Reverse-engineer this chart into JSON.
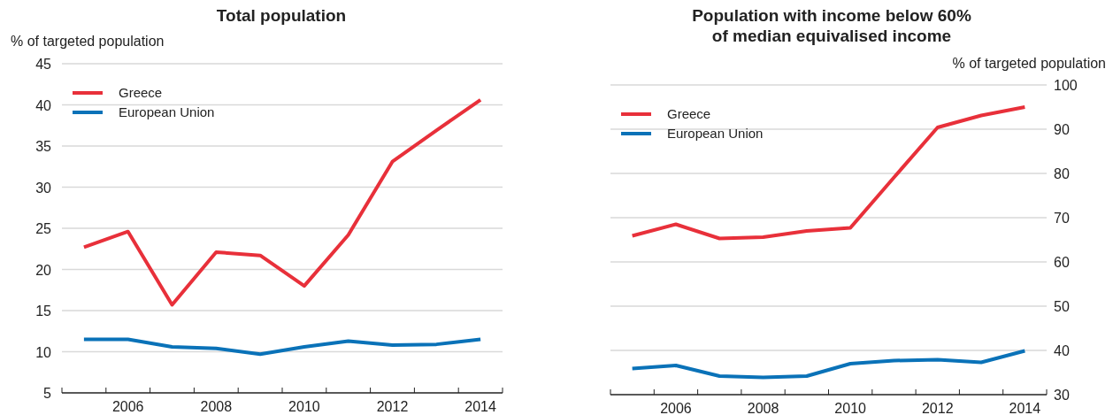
{
  "chart_data": [
    {
      "type": "line",
      "title": "Total population",
      "ylabel": "% of targeted population",
      "x": [
        2005,
        2006,
        2007,
        2008,
        2009,
        2010,
        2011,
        2012,
        2013,
        2014
      ],
      "series": [
        {
          "name": "Greece",
          "color": "#e8303a",
          "values": [
            22.7,
            24.6,
            15.7,
            22.1,
            21.7,
            18.0,
            24.2,
            33.1,
            36.9,
            40.6
          ]
        },
        {
          "name": "European Union",
          "color": "#0a72b8",
          "values": [
            11.5,
            11.5,
            10.6,
            10.4,
            9.7,
            10.6,
            11.3,
            10.8,
            10.9,
            11.5
          ]
        }
      ],
      "xlim": [
        2004.5,
        2014.5
      ],
      "xticks": [
        {
          "value": 2004.5,
          "label": null
        },
        {
          "value": 2005.5,
          "label": null
        },
        2006,
        {
          "value": 2006.5,
          "label": null
        },
        {
          "value": 2007.5,
          "label": null
        },
        2008,
        {
          "value": 2008.5,
          "label": null
        },
        {
          "value": 2009.5,
          "label": null
        },
        2010,
        {
          "value": 2010.5,
          "label": null
        },
        {
          "value": 2011.5,
          "label": null
        },
        2012,
        {
          "value": 2012.5,
          "label": null
        },
        {
          "value": 2013.5,
          "label": null
        },
        2014,
        {
          "value": 2014.5,
          "label": null
        }
      ],
      "ylim": [
        5,
        45
      ],
      "yticks": [
        5,
        10,
        15,
        20,
        25,
        30,
        35,
        40,
        45
      ],
      "grid": "y",
      "legend": "top left",
      "line_style": "solid",
      "marker": "none"
    },
    {
      "type": "line",
      "title": "Population with income below 60% of median equivalised income",
      "ylabel": "% of targeted population",
      "x": [
        2005,
        2006,
        2007,
        2008,
        2009,
        2010,
        2011,
        2012,
        2013,
        2014
      ],
      "series": [
        {
          "name": "Greece",
          "color": "#e8303a",
          "values": [
            65.9,
            68.5,
            65.3,
            65.6,
            67.0,
            67.7,
            79.1,
            90.4,
            93.1,
            95.0
          ]
        },
        {
          "name": "European Union",
          "color": "#0a72b8",
          "values": [
            35.9,
            36.6,
            34.2,
            33.9,
            34.2,
            37.0,
            37.7,
            37.9,
            37.3,
            39.9
          ]
        }
      ],
      "xlim": [
        2004.5,
        2014.5
      ],
      "xticks": [
        {
          "value": 2004.5,
          "label": null
        },
        {
          "value": 2005.5,
          "label": null
        },
        2006,
        {
          "value": 2006.5,
          "label": null
        },
        {
          "value": 2007.5,
          "label": null
        },
        2008,
        {
          "value": 2008.5,
          "label": null
        },
        {
          "value": 2009.5,
          "label": null
        },
        2010,
        {
          "value": 2010.5,
          "label": null
        },
        {
          "value": 2011.5,
          "label": null
        },
        2012,
        {
          "value": 2012.5,
          "label": null
        },
        {
          "value": 2013.5,
          "label": null
        },
        2014,
        {
          "value": 2014.5,
          "label": null
        }
      ],
      "ylim": [
        30,
        100
      ],
      "yticks": [
        30,
        40,
        50,
        60,
        70,
        80,
        90,
        100
      ],
      "grid": "y",
      "legend": "top left",
      "line_style": "solid",
      "marker": "none"
    }
  ]
}
